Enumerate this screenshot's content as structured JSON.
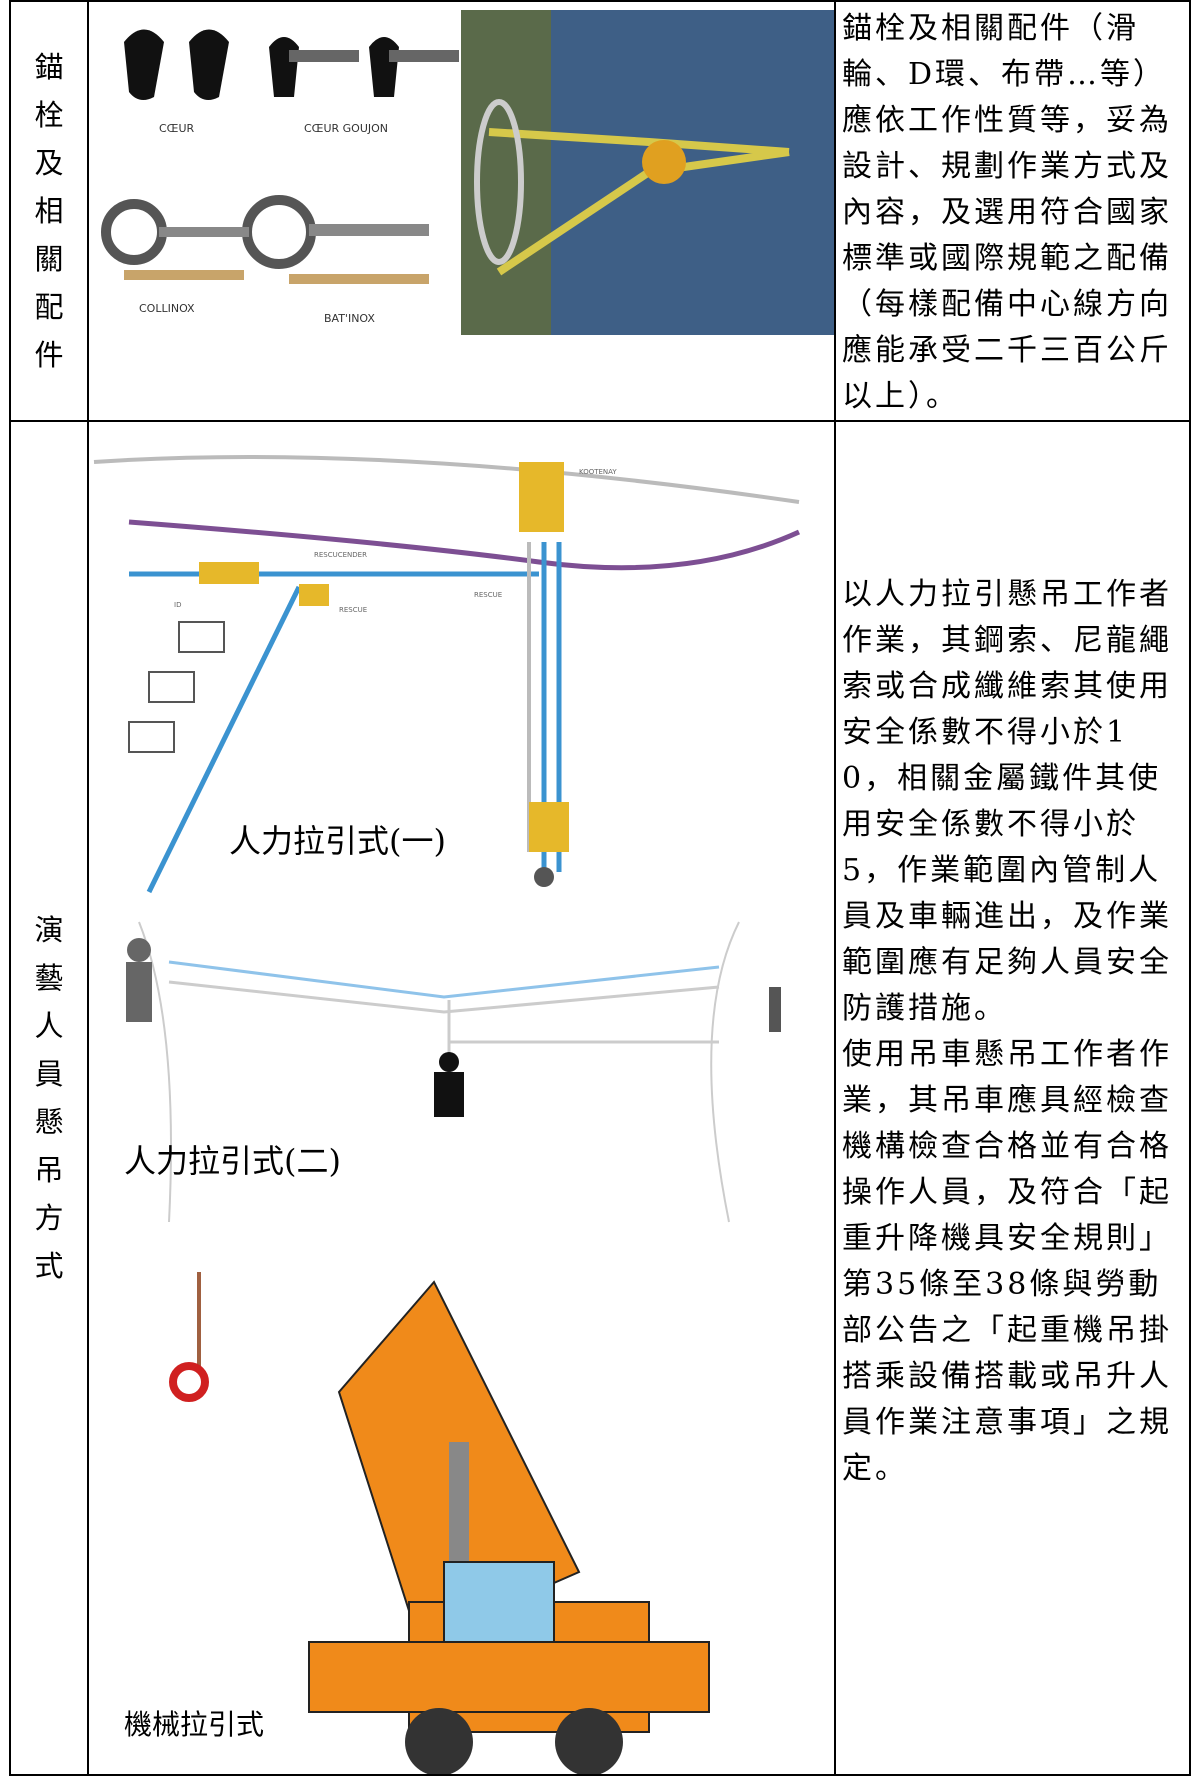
{
  "table": {
    "rows": [
      {
        "label": [
          "錨",
          "栓",
          "及",
          "相",
          "關",
          "配",
          "件"
        ],
        "captions": [
          "CŒUR",
          "CŒUR GOUJON",
          "COLLINOX",
          "BAT'INOX"
        ],
        "text": [
          "錨栓及相關配件（滑輪、D環、布帶…等）應依工作性質等，妥為設計、規劃作業方式及內容，及選用符合國家標準或國際規範之配備（每樣配備中心線方向應能承受二千三百公斤以上）。"
        ]
      },
      {
        "label": [
          "演",
          "藝",
          "人",
          "員",
          "懸",
          "吊",
          "方",
          "式"
        ],
        "captions": [
          "人力拉引式(一)",
          "人力拉引式(二)",
          "機械拉引式"
        ],
        "diagram_labels": [
          "KOOTENAY",
          "RESCUCENDER",
          "ID",
          "RESCUE",
          "RESCUE"
        ],
        "text": [
          "以人力拉引懸吊工作者作業，其鋼索、尼龍繩索或合成纖維索其使用安全係數不得小於10，相關金屬鐵件其使用安全係數不得小於5，作業範圍內管制人員及車輛進出，及作業範圍應有足夠人員安全防護措施。",
          "使用吊車懸吊工作者作業，其吊車應具經檢查機構檢查合格並有合格操作人員，及符合「起重升降機具安全規則」第35條至38條與勞動部公告之「起重機吊掛搭乘設備搭載或吊升人員作業注意事項」之規定。"
        ]
      }
    ]
  }
}
